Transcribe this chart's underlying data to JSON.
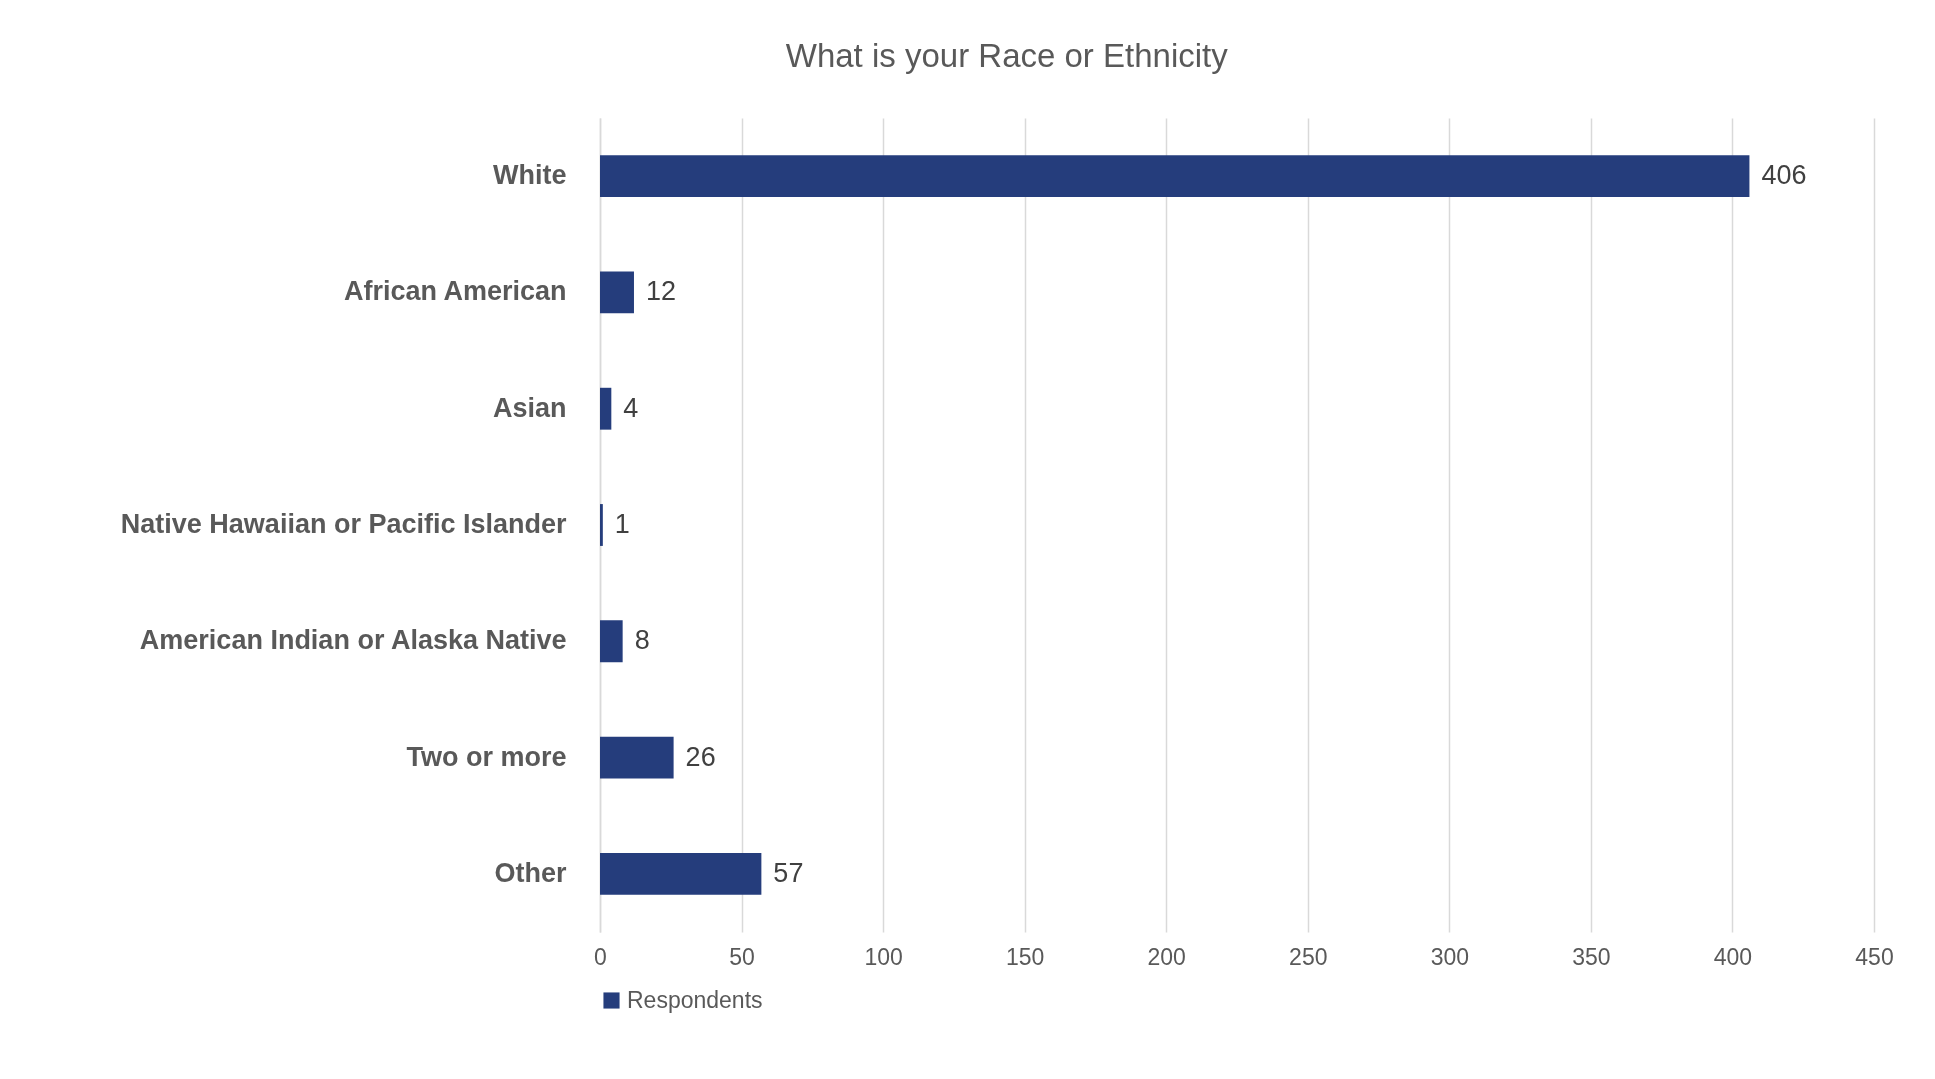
{
  "chart_data": {
    "type": "bar",
    "orientation": "horizontal",
    "title": "What is your Race or Ethnicity",
    "categories": [
      "White",
      "African American",
      "Asian",
      "Native Hawaiian or Pacific Islander",
      "American Indian or Alaska Native",
      "Two or more",
      "Other"
    ],
    "series": [
      {
        "name": "Respondents",
        "color": "#253d7c",
        "values": [
          406,
          12,
          4,
          1,
          8,
          26,
          57
        ]
      }
    ],
    "xlim": [
      0,
      450
    ],
    "xticks": [
      0,
      50,
      100,
      150,
      200,
      250,
      300,
      350,
      400,
      450
    ],
    "grid": "x",
    "legend": "bottom",
    "data_labels": true
  }
}
